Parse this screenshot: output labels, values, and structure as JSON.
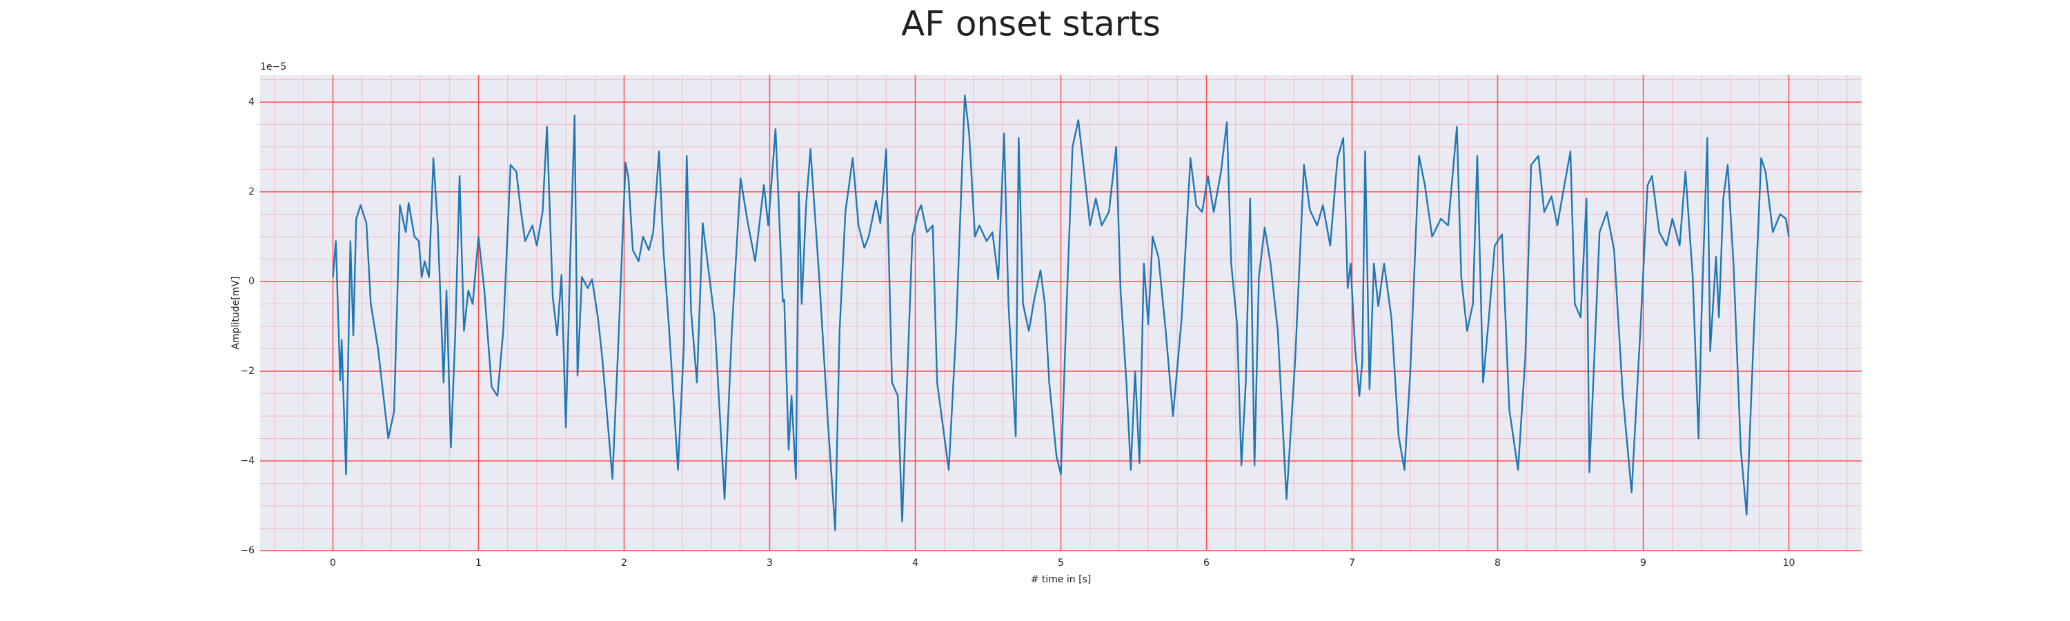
{
  "chart_data": {
    "type": "line",
    "title": "AF onset starts",
    "xlabel": "# time in [s]",
    "ylabel": "Amplitude[mV]",
    "y_offset_text": "1e−5",
    "xlim": [
      -0.5,
      10.5
    ],
    "ylim": [
      -6,
      4.6
    ],
    "xticks": [
      0,
      1,
      2,
      3,
      4,
      5,
      6,
      7,
      8,
      9,
      10
    ],
    "yticks": [
      {
        "value": -6,
        "label": "−6"
      },
      {
        "value": -4,
        "label": "−4"
      },
      {
        "value": -2,
        "label": "−2"
      },
      0,
      2,
      4
    ],
    "grid": true,
    "grid_color": "#ff4d4d",
    "minor_grid": true,
    "minor_grid_color": "#f7b8c8",
    "x_minor_divisions": 5,
    "y_minor_divisions": 4,
    "background": "#eaeaf2",
    "x": [
      0,
      0.02,
      0.05,
      0.06,
      0.09,
      0.12,
      0.14,
      0.16,
      0.19,
      0.23,
      0.26,
      0.31,
      0.38,
      0.42,
      0.46,
      0.5,
      0.52,
      0.56,
      0.59,
      0.61,
      0.63,
      0.66,
      0.69,
      0.72,
      0.76,
      0.78,
      0.81,
      0.84,
      0.87,
      0.9,
      0.93,
      0.96,
      1.0,
      1.04,
      1.09,
      1.13,
      1.17,
      1.22,
      1.26,
      1.29,
      1.32,
      1.37,
      1.4,
      1.44,
      1.47,
      1.51,
      1.54,
      1.57,
      1.6,
      1.63,
      1.66,
      1.68,
      1.71,
      1.75,
      1.78,
      1.82,
      1.85,
      1.92,
      1.96,
      2.01,
      2.03,
      2.06,
      2.1,
      2.13,
      2.17,
      2.2,
      2.24,
      2.27,
      2.31,
      2.37,
      2.41,
      2.43,
      2.46,
      2.5,
      2.54,
      2.62,
      2.69,
      2.74,
      2.8,
      2.85,
      2.9,
      2.96,
      2.99,
      3.04,
      3.09,
      3.1,
      3.13,
      3.15,
      3.18,
      3.2,
      3.22,
      3.25,
      3.28,
      3.34,
      3.4,
      3.45,
      3.48,
      3.52,
      3.57,
      3.61,
      3.65,
      3.68,
      3.73,
      3.76,
      3.8,
      3.84,
      3.88,
      3.91,
      3.94,
      3.98,
      4.02,
      4.04,
      4.08,
      4.12,
      4.15,
      4.23,
      4.28,
      4.34,
      4.37,
      4.41,
      4.44,
      4.49,
      4.53,
      4.57,
      4.61,
      4.64,
      4.66,
      4.69,
      4.71,
      4.74,
      4.78,
      4.82,
      4.86,
      4.89,
      4.92,
      4.97,
      5.0,
      5.04,
      5.08,
      5.12,
      5.16,
      5.2,
      5.24,
      5.28,
      5.33,
      5.38,
      5.41,
      5.45,
      5.48,
      5.51,
      5.54,
      5.57,
      5.6,
      5.63,
      5.67,
      5.72,
      5.77,
      5.83,
      5.89,
      5.93,
      5.97,
      6.01,
      6.05,
      6.1,
      6.14,
      6.17,
      6.21,
      6.24,
      6.27,
      6.3,
      6.33,
      6.36,
      6.4,
      6.44,
      6.49,
      6.55,
      6.61,
      6.67,
      6.71,
      6.76,
      6.8,
      6.85,
      6.9,
      6.94,
      6.97,
      6.99,
      7.02,
      7.05,
      7.07,
      7.09,
      7.12,
      7.15,
      7.18,
      7.22,
      7.27,
      7.32,
      7.36,
      7.4,
      7.46,
      7.5,
      7.55,
      7.61,
      7.66,
      7.72,
      7.75,
      7.79,
      7.83,
      7.86,
      7.9,
      7.94,
      7.98,
      8.03,
      8.08,
      8.14,
      8.19,
      8.23,
      8.28,
      8.32,
      8.37,
      8.41,
      8.45,
      8.5,
      8.53,
      8.57,
      8.61,
      8.63,
      8.66,
      8.7,
      8.75,
      8.8,
      8.86,
      8.92,
      8.98,
      9.03,
      9.06,
      9.11,
      9.16,
      9.2,
      9.25,
      9.29,
      9.34,
      9.38,
      9.4,
      9.44,
      9.46,
      9.5,
      9.52,
      9.55,
      9.58,
      9.62,
      9.67,
      9.71,
      9.76,
      9.81,
      9.84,
      9.89,
      9.94,
      9.98,
      10.0
    ],
    "series": [
      {
        "color": "#1f77b4",
        "values": [
          0.1,
          0.9,
          -2.2,
          -1.3,
          -4.3,
          0.9,
          -1.2,
          1.4,
          1.7,
          1.3,
          -0.5,
          -1.5,
          -3.5,
          -2.9,
          1.7,
          1.1,
          1.75,
          1.0,
          0.9,
          0.1,
          0.45,
          0.1,
          2.75,
          1.25,
          -2.25,
          -0.2,
          -3.7,
          -1.2,
          2.35,
          -1.1,
          -0.2,
          -0.5,
          1.0,
          -0.2,
          -2.35,
          -2.55,
          -1.1,
          2.6,
          2.45,
          1.6,
          0.9,
          1.25,
          0.8,
          1.55,
          3.45,
          -0.35,
          -1.2,
          0.15,
          -3.25,
          0.5,
          3.7,
          -2.1,
          0.1,
          -0.15,
          0.05,
          -0.8,
          -1.7,
          -4.4,
          -1.4,
          2.65,
          2.3,
          0.7,
          0.45,
          1.0,
          0.7,
          1.1,
          2.9,
          0.7,
          -1.1,
          -4.2,
          -1.45,
          2.8,
          -0.65,
          -2.25,
          1.3,
          -0.8,
          -4.85,
          -1.1,
          2.3,
          1.3,
          0.45,
          2.15,
          1.25,
          3.4,
          -0.45,
          -0.4,
          -3.75,
          -2.55,
          -4.4,
          2.0,
          -0.5,
          1.7,
          2.95,
          0.1,
          -3.15,
          -5.55,
          -1.1,
          1.55,
          2.75,
          1.25,
          0.75,
          1.0,
          1.8,
          1.3,
          2.95,
          -2.25,
          -2.55,
          -5.35,
          -2.55,
          1.0,
          1.55,
          1.7,
          1.1,
          1.25,
          -2.25,
          -4.2,
          -1.1,
          4.15,
          3.3,
          1.0,
          1.25,
          0.9,
          1.1,
          0.05,
          3.3,
          -0.5,
          -1.7,
          -3.45,
          3.2,
          -0.5,
          -1.1,
          -0.35,
          0.25,
          -0.5,
          -2.25,
          -3.9,
          -4.3,
          -0.5,
          3.0,
          3.6,
          2.45,
          1.25,
          1.85,
          1.25,
          1.55,
          3.0,
          -0.2,
          -2.25,
          -4.2,
          -2.0,
          -4.05,
          0.4,
          -0.95,
          1.0,
          0.55,
          -1.1,
          -3.0,
          -0.8,
          2.75,
          1.7,
          1.55,
          2.35,
          1.55,
          2.45,
          3.55,
          0.4,
          -0.95,
          -4.1,
          -2.25,
          1.85,
          -4.1,
          0.1,
          1.2,
          0.4,
          -1.1,
          -4.85,
          -1.7,
          2.6,
          1.6,
          1.25,
          1.7,
          0.8,
          2.75,
          3.2,
          -0.15,
          0.4,
          -1.45,
          -2.55,
          -1.8,
          2.9,
          -2.4,
          0.4,
          -0.55,
          0.4,
          -0.8,
          -3.45,
          -4.2,
          -2.0,
          2.8,
          2.15,
          1.0,
          1.4,
          1.25,
          3.45,
          0.1,
          -1.1,
          -0.5,
          2.8,
          -2.25,
          -0.8,
          0.8,
          1.05,
          -2.85,
          -4.2,
          -1.7,
          2.6,
          2.8,
          1.55,
          1.9,
          1.25,
          2.0,
          2.9,
          -0.5,
          -0.8,
          1.85,
          -4.25,
          -2.0,
          1.1,
          1.55,
          0.7,
          -2.55,
          -4.7,
          -1.1,
          2.15,
          2.35,
          1.1,
          0.8,
          1.4,
          0.8,
          2.45,
          0.1,
          -3.5,
          -0.8,
          3.2,
          -1.55,
          0.55,
          -0.8,
          1.85,
          2.6,
          0.4,
          -3.75,
          -5.2,
          -1.1,
          2.75,
          2.45,
          1.1,
          1.5,
          1.4,
          1.0
        ]
      }
    ]
  }
}
